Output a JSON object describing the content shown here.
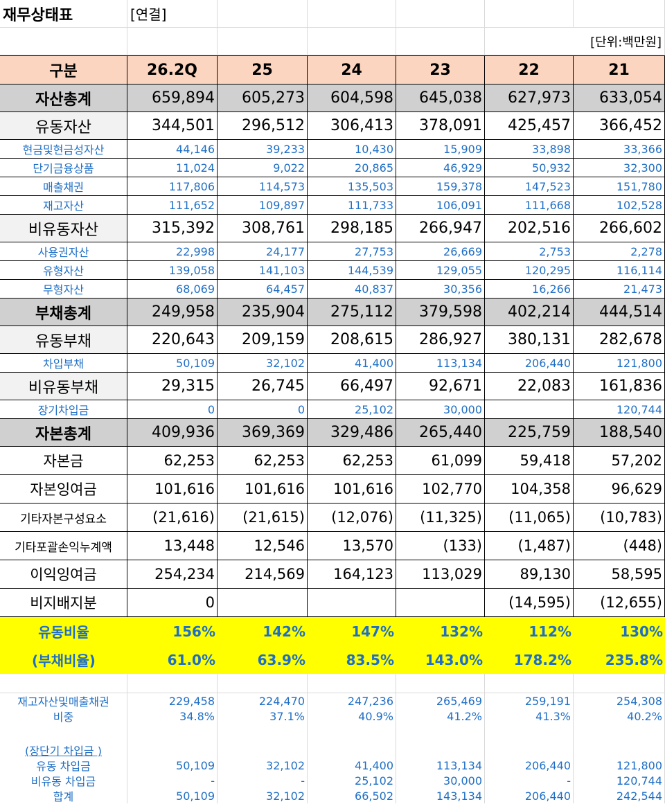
{
  "title": "재무상태표",
  "scope": "[연결]",
  "unit": "[단위:백만원]",
  "header": [
    "구분",
    "26.2Q",
    "25",
    "24",
    "23",
    "22",
    "21"
  ],
  "assets_total": {
    "label": "자산총계",
    "values": [
      "659,894",
      "605,273",
      "604,598",
      "645,038",
      "627,973",
      "633,054"
    ]
  },
  "current_assets": {
    "label": "유동자산",
    "values": [
      "344,501",
      "296,512",
      "306,413",
      "378,091",
      "425,457",
      "366,452"
    ]
  },
  "current_asset_items": [
    {
      "label": "현금및현금성자산",
      "values": [
        "44,146",
        "39,233",
        "10,430",
        "15,909",
        "33,898",
        "33,366"
      ]
    },
    {
      "label": "단기금융상품",
      "values": [
        "11,024",
        "9,022",
        "20,865",
        "46,929",
        "50,932",
        "32,300"
      ]
    },
    {
      "label": "매출채권",
      "values": [
        "117,806",
        "114,573",
        "135,503",
        "159,378",
        "147,523",
        "151,780"
      ]
    },
    {
      "label": "재고자산",
      "values": [
        "111,652",
        "109,897",
        "111,733",
        "106,091",
        "111,668",
        "102,528"
      ]
    }
  ],
  "noncurrent_assets": {
    "label": "비유동자산",
    "values": [
      "315,392",
      "308,761",
      "298,185",
      "266,947",
      "202,516",
      "266,602"
    ]
  },
  "noncurrent_asset_items": [
    {
      "label": "사용권자산",
      "values": [
        "22,998",
        "24,177",
        "27,753",
        "26,669",
        "2,753",
        "2,278"
      ]
    },
    {
      "label": "유형자산",
      "values": [
        "139,058",
        "141,103",
        "144,539",
        "129,055",
        "120,295",
        "116,114"
      ]
    },
    {
      "label": "무형자산",
      "values": [
        "68,069",
        "64,457",
        "40,837",
        "30,356",
        "16,266",
        "21,473"
      ]
    }
  ],
  "liabilities_total": {
    "label": "부채총계",
    "values": [
      "249,958",
      "235,904",
      "275,112",
      "379,598",
      "402,214",
      "444,514"
    ]
  },
  "current_liabilities": {
    "label": "유동부채",
    "values": [
      "220,643",
      "209,159",
      "208,615",
      "286,927",
      "380,131",
      "282,678"
    ]
  },
  "current_liability_items": [
    {
      "label": "차입부채",
      "values": [
        "50,109",
        "32,102",
        "41,400",
        "113,134",
        "206,440",
        "121,800"
      ]
    }
  ],
  "noncurrent_liabilities": {
    "label": "비유동부채",
    "values": [
      "29,315",
      "26,745",
      "66,497",
      "92,671",
      "22,083",
      "161,836"
    ]
  },
  "noncurrent_liability_items": [
    {
      "label": "장기차입금",
      "values": [
        "0",
        "0",
        "25,102",
        "30,000",
        "",
        "120,744"
      ]
    }
  ],
  "equity_total": {
    "label": "자본총계",
    "values": [
      "409,936",
      "369,369",
      "329,486",
      "265,440",
      "225,759",
      "188,540"
    ]
  },
  "equity_items": [
    {
      "label": "자본금",
      "values": [
        "62,253",
        "62,253",
        "62,253",
        "61,099",
        "59,418",
        "57,202"
      ]
    },
    {
      "label": "자본잉여금",
      "values": [
        "101,616",
        "101,616",
        "101,616",
        "102,770",
        "104,358",
        "96,629"
      ]
    },
    {
      "label": "기타자본구성요소",
      "values": [
        "(21,616)",
        "(21,615)",
        "(12,076)",
        "(11,325)",
        "(11,065)",
        "(10,783)"
      ]
    },
    {
      "label": "기타포괄손익누계액",
      "values": [
        "13,448",
        "12,546",
        "13,570",
        "(133)",
        "(1,487)",
        "(448)"
      ]
    },
    {
      "label": "이익잉여금",
      "values": [
        "254,234",
        "214,569",
        "164,123",
        "113,029",
        "89,130",
        "58,595"
      ]
    },
    {
      "label": "비지배지분",
      "values": [
        "0",
        "",
        "",
        "",
        "(14,595)",
        "(12,655)"
      ]
    }
  ],
  "ratios": [
    {
      "label": "유동비율",
      "values": [
        "156%",
        "142%",
        "147%",
        "132%",
        "112%",
        "130%"
      ]
    },
    {
      "label": "(부채비율)",
      "values": [
        "61.0%",
        "63.9%",
        "83.5%",
        "143.0%",
        "178.2%",
        "235.8%"
      ]
    }
  ],
  "inventory_receivables": [
    {
      "label": "재고자산및매출채권",
      "values": [
        "229,458",
        "224,470",
        "247,236",
        "265,469",
        "259,191",
        "254,308"
      ]
    },
    {
      "label": "비중",
      "values": [
        "34.8%",
        "37.1%",
        "40.9%",
        "41.2%",
        "41.3%",
        "40.2%"
      ]
    }
  ],
  "borrowings_title": "(장단기 차입금 )",
  "borrowings": [
    {
      "label": "유동 차입금",
      "values": [
        "50,109",
        "32,102",
        "41,400",
        "113,134",
        "206,440",
        "121,800"
      ]
    },
    {
      "label": "비유동 차입금",
      "values": [
        "-",
        "-",
        "25,102",
        "30,000",
        "-",
        "120,744"
      ]
    },
    {
      "label": "합계",
      "values": [
        "50,109",
        "32,102",
        "66,502",
        "143,134",
        "206,440",
        "242,544"
      ]
    }
  ]
}
